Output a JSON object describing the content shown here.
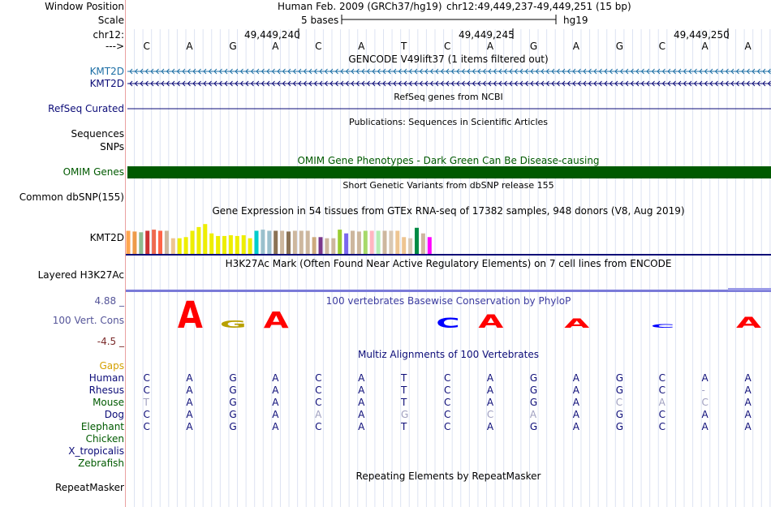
{
  "header": {
    "window_position_label": "Window Position",
    "assembly": "Human Feb. 2009 (GRCh37/hg19)",
    "position": "chr12:49,449,237-49,449,251 (15 bp)",
    "scale_label": "Scale",
    "scale_bar_text": "5 bases",
    "db": "hg19",
    "chrom_label": "chr12:",
    "coords": [
      "49,449,240",
      "49,449,245",
      "49,449,250"
    ],
    "strand_arrow": "--->",
    "bases": [
      "C",
      "A",
      "G",
      "A",
      "C",
      "A",
      "T",
      "C",
      "A",
      "G",
      "A",
      "G",
      "C",
      "A",
      "A"
    ]
  },
  "tracks": {
    "gencode": {
      "title": "GENCODE V49lift37 (1 items filtered out)",
      "genes": [
        "KMT2D",
        "KMT2D"
      ]
    },
    "refseq": {
      "label": "RefSeq Curated",
      "title": "RefSeq genes from NCBI"
    },
    "publications": {
      "label": "Sequences",
      "title": "Publications: Sequences in Scientific Articles"
    },
    "snps": {
      "label": "SNPs"
    },
    "omim": {
      "label": "OMIM Genes",
      "title": "OMIM Gene Phenotypes - Dark Green Can Be Disease-causing",
      "color": "#005a00"
    },
    "dbsnp": {
      "label": "Common dbSNP(155)",
      "title": "Short Genetic Variants from dbSNP release 155"
    },
    "gtex": {
      "title": "Gene Expression in 54 tissues from GTEx RNA-seq of 17382 samples, 948 donors (V8, Aug 2019)",
      "gene": "KMT2D",
      "bars": [
        {
          "color": "#ffa54f",
          "level": 0.62
        },
        {
          "color": "#ee9a49",
          "level": 0.6
        },
        {
          "color": "#8fbc8f",
          "level": 0.58
        },
        {
          "color": "#cd3333",
          "level": 0.62
        },
        {
          "color": "#ee6a50",
          "level": 0.65
        },
        {
          "color": "#ff6347",
          "level": 0.62
        },
        {
          "color": "#cdb79e",
          "level": 0.62
        },
        {
          "color": "#eec591",
          "level": 0.42
        },
        {
          "color": "#eeee00",
          "level": 0.42
        },
        {
          "color": "#eeee00",
          "level": 0.45
        },
        {
          "color": "#eeee00",
          "level": 0.62
        },
        {
          "color": "#eeee00",
          "level": 0.72
        },
        {
          "color": "#eeee00",
          "level": 0.8
        },
        {
          "color": "#eeee00",
          "level": 0.55
        },
        {
          "color": "#eeee00",
          "level": 0.48
        },
        {
          "color": "#eeee00",
          "level": 0.48
        },
        {
          "color": "#eeee00",
          "level": 0.5
        },
        {
          "color": "#eeee00",
          "level": 0.48
        },
        {
          "color": "#eeee00",
          "level": 0.5
        },
        {
          "color": "#eeee00",
          "level": 0.42
        },
        {
          "color": "#00cdcd",
          "level": 0.62
        },
        {
          "color": "#9ac0cd",
          "level": 0.65
        },
        {
          "color": "#9ac0cd",
          "level": 0.62
        },
        {
          "color": "#8b7355",
          "level": 0.62
        },
        {
          "color": "#cdb79e",
          "level": 0.62
        },
        {
          "color": "#8b7355",
          "level": 0.6
        },
        {
          "color": "#cdb79e",
          "level": 0.62
        },
        {
          "color": "#cdb79e",
          "level": 0.62
        },
        {
          "color": "#cdb79e",
          "level": 0.62
        },
        {
          "color": "#cdaa7d",
          "level": 0.45
        },
        {
          "color": "#7a378b",
          "level": 0.45
        },
        {
          "color": "#cdb79e",
          "level": 0.42
        },
        {
          "color": "#cdb79e",
          "level": 0.42
        },
        {
          "color": "#9acd32",
          "level": 0.65
        },
        {
          "color": "#7a67ee",
          "level": 0.55
        },
        {
          "color": "#cdb79e",
          "level": 0.62
        },
        {
          "color": "#cdb79e",
          "level": 0.6
        },
        {
          "color": "#a6d96a",
          "level": 0.62
        },
        {
          "color": "#ffb6c1",
          "level": 0.62
        },
        {
          "color": "#b4eeb4",
          "level": 0.62
        },
        {
          "color": "#cdb79e",
          "level": 0.62
        },
        {
          "color": "#d9c8b4",
          "level": 0.62
        },
        {
          "color": "#eec591",
          "level": 0.62
        },
        {
          "color": "#eec591",
          "level": 0.45
        },
        {
          "color": "#d9c8b4",
          "level": 0.42
        },
        {
          "color": "#008b45",
          "level": 0.7
        },
        {
          "color": "#cdb79e",
          "level": 0.55
        },
        {
          "color": "#ff00ff",
          "level": 0.45
        }
      ]
    },
    "h3k27ac": {
      "label": "Layered H3K27Ac",
      "title": "H3K27Ac Mark (Often Found Near Active Regulatory Elements) on 7 cell lines from ENCODE"
    },
    "phylop": {
      "label": "100 Vert. Cons",
      "title": "100 vertebrates Basewise Conservation by PhyloP",
      "ymax": "4.88 _",
      "ymin": "-4.5 _",
      "scores": [
        0,
        4.3,
        1.2,
        2.6,
        0,
        0,
        0,
        1.6,
        2.1,
        0,
        1.5,
        0,
        0.6,
        0,
        1.8
      ]
    },
    "multiz": {
      "title": "Multiz Alignments of 100 Vertebrates",
      "gaps_label": "Gaps",
      "species": [
        {
          "name": "Human",
          "seq": [
            "C",
            "A",
            "G",
            "A",
            "C",
            "A",
            "T",
            "C",
            "A",
            "G",
            "A",
            "G",
            "C",
            "A",
            "A"
          ],
          "faint": []
        },
        {
          "name": "Rhesus",
          "seq": [
            "C",
            "A",
            "G",
            "A",
            "C",
            "A",
            "T",
            "C",
            "A",
            "G",
            "A",
            "G",
            "C",
            "-",
            "A"
          ],
          "faint": [
            13
          ]
        },
        {
          "name": "Mouse",
          "seq": [
            "T",
            "A",
            "G",
            "A",
            "C",
            "A",
            "T",
            "C",
            "A",
            "G",
            "A",
            "C",
            "A",
            "C",
            "A"
          ],
          "faint": [
            0,
            11,
            12,
            13
          ]
        },
        {
          "name": "Dog",
          "seq": [
            "C",
            "A",
            "G",
            "A",
            "A",
            "A",
            "G",
            "C",
            "C",
            "A",
            "A",
            "G",
            "C",
            "A",
            "A"
          ],
          "faint": [
            4,
            6,
            8,
            9
          ]
        },
        {
          "name": "Elephant",
          "seq": [
            "C",
            "A",
            "G",
            "A",
            "C",
            "A",
            "T",
            "C",
            "A",
            "G",
            "A",
            "G",
            "C",
            "A",
            "A"
          ],
          "faint": []
        },
        {
          "name": "Chicken",
          "seq": [],
          "faint": []
        },
        {
          "name": "X_tropicalis",
          "seq": [],
          "faint": []
        },
        {
          "name": "Zebrafish",
          "seq": [],
          "faint": []
        }
      ]
    },
    "repeatmasker": {
      "label": "RepeatMasker",
      "title": "Repeating Elements by RepeatMasker"
    }
  }
}
